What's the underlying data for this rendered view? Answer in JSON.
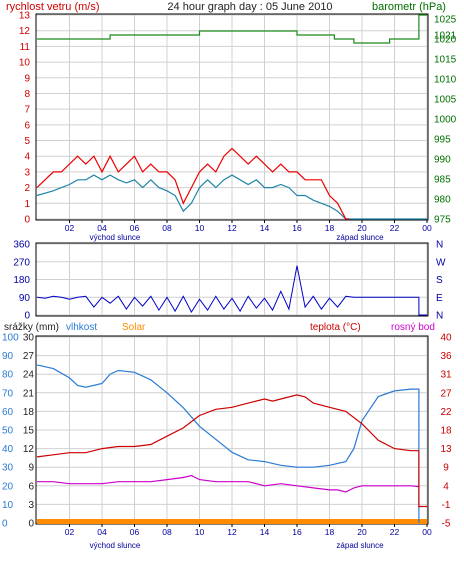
{
  "header": {
    "title": "24 hour graph day : 05 June 2010",
    "left_label": "rychlost vetru (m/s)",
    "right_label": "barometr (hPa)"
  },
  "colors": {
    "wind_axis": "#d00000",
    "pressure_axis": "#007000",
    "gust": "#ee0000",
    "wind_avg": "#1f84a8",
    "pressure": "#1a8a1a",
    "direction": "#0000cc",
    "direction_axis": "#0000a0",
    "humidity": "#2a7ad4",
    "temperature": "#cc0000",
    "dewpoint": "#cc00cc",
    "solar": "#ff8c00",
    "rain_axis": "#2a7ad4",
    "grid": "#d0d0d0"
  },
  "chart_data": [
    {
      "id": "wind",
      "type": "line",
      "y_left": {
        "label": "rychlost vetru (m/s)",
        "range": [
          0,
          13
        ],
        "ticks": [
          "0",
          "1",
          "2",
          "3",
          "4",
          "5",
          "6",
          "7",
          "8",
          "9",
          "10",
          "11",
          "12",
          "13"
        ]
      },
      "y_right": {
        "label": "barometr (hPa)",
        "range": [
          975,
          1026
        ],
        "ticks": [
          "975",
          "980",
          "985",
          "990",
          "995",
          "1000",
          "1005",
          "1010",
          "1015",
          "1020",
          "1025"
        ],
        "extra_tick": "1021"
      },
      "x_ticks": [
        "02",
        "04",
        "06",
        "08",
        "10",
        "12",
        "14",
        "16",
        "18",
        "20",
        "22",
        "00"
      ],
      "x_range": [
        0,
        24
      ],
      "annotations": [
        "východ slunce",
        "západ slunce"
      ],
      "series": [
        {
          "name": "rychlost vetru (m/s)",
          "role": "gust",
          "x": [
            0,
            1,
            1.5,
            2,
            2.5,
            3,
            3.5,
            4,
            4.5,
            5,
            5.5,
            6,
            6.5,
            7,
            7.5,
            8,
            8.5,
            9,
            9.5,
            10,
            10.5,
            11,
            11.5,
            12,
            12.5,
            13,
            13.5,
            14,
            14.5,
            15,
            15.5,
            16,
            16.5,
            17,
            17.5,
            18,
            18.5,
            19,
            19.2
          ],
          "y": [
            2,
            3,
            3,
            3.5,
            4,
            3.5,
            4,
            3,
            4,
            3,
            3.5,
            4,
            3,
            3.5,
            3,
            3,
            2.5,
            1,
            2,
            3,
            3.5,
            3,
            4,
            4.5,
            4,
            3.5,
            4,
            3.5,
            3,
            3.5,
            3,
            3,
            2.5,
            2.5,
            2.5,
            1.5,
            1,
            0,
            0
          ]
        },
        {
          "name": "wind avg",
          "role": "average",
          "x": [
            0,
            1,
            1.5,
            2,
            2.5,
            3,
            3.5,
            4,
            4.5,
            5,
            5.5,
            6,
            6.5,
            7,
            7.5,
            8,
            8.5,
            9,
            9.5,
            10,
            10.5,
            11,
            11.5,
            12,
            12.5,
            13,
            13.5,
            14,
            14.5,
            15,
            15.5,
            16,
            16.5,
            17,
            17.5,
            18,
            18.5,
            19,
            19.2,
            24
          ],
          "y": [
            1.5,
            1.8,
            2,
            2.2,
            2.5,
            2.5,
            2.8,
            2.5,
            2.8,
            2.5,
            2.3,
            2.5,
            2,
            2.5,
            2,
            1.8,
            1.5,
            0.5,
            1,
            2,
            2.5,
            2,
            2.5,
            2.8,
            2.5,
            2.2,
            2.5,
            2,
            2,
            2.2,
            2,
            1.5,
            1.5,
            1.2,
            1,
            0.8,
            0.5,
            0,
            0,
            0
          ]
        },
        {
          "name": "barometr (hPa)",
          "role": "pressure",
          "x": [
            0,
            4.5,
            4.5,
            10,
            10,
            16,
            16,
            18.3,
            18.3,
            19.5,
            19.5,
            21.7,
            21.7,
            23.5,
            23.5,
            24
          ],
          "y": [
            1020,
            1020,
            1021,
            1021,
            1022,
            1022,
            1021,
            1021,
            1020,
            1020,
            1019,
            1019,
            1020,
            1020,
            1026,
            1026
          ]
        }
      ]
    },
    {
      "id": "direction",
      "type": "line",
      "y_left": {
        "range": [
          0,
          360
        ],
        "ticks": [
          "0",
          "90",
          "180",
          "270",
          "360"
        ]
      },
      "y_right": {
        "labels": [
          "N",
          "W",
          "S",
          "E",
          "N"
        ]
      },
      "x_range": [
        0,
        24
      ],
      "series": [
        {
          "name": "wind direction",
          "x": [
            0,
            0.5,
            1,
            1.5,
            2,
            2.5,
            3,
            3.5,
            4,
            4.5,
            5,
            5.5,
            6,
            6.5,
            7,
            7.5,
            8,
            8.5,
            9,
            9.5,
            10,
            10.5,
            11,
            11.5,
            12,
            12.5,
            13,
            13.5,
            14,
            14.5,
            15,
            15.5,
            16,
            16.5,
            17,
            17.5,
            18,
            18.5,
            19,
            19.5,
            23.5,
            23.5,
            24
          ],
          "y": [
            90,
            85,
            95,
            90,
            80,
            90,
            95,
            40,
            90,
            60,
            95,
            30,
            90,
            45,
            95,
            25,
            90,
            20,
            95,
            15,
            80,
            25,
            95,
            30,
            85,
            20,
            95,
            35,
            85,
            25,
            120,
            30,
            250,
            40,
            95,
            30,
            85,
            40,
            95,
            90,
            90,
            0,
            0
          ]
        }
      ]
    },
    {
      "id": "temperature",
      "type": "line",
      "y_left_rain": {
        "label": "srážky (mm)",
        "range": [
          0,
          30
        ],
        "ticks": [
          "0",
          "3",
          "6",
          "9",
          "12",
          "15",
          "18",
          "21",
          "24",
          "27",
          "30"
        ]
      },
      "y_left_humidity": {
        "label": "vlhkost",
        "range": [
          0,
          100
        ],
        "ticks": [
          "0",
          "10",
          "20",
          "30",
          "40",
          "50",
          "60",
          "70",
          "80",
          "90",
          "100"
        ]
      },
      "y_right": {
        "label": "teplota (°C)",
        "range": [
          -5,
          40
        ],
        "ticks": [
          "-5",
          "-1",
          "4",
          "9",
          "13",
          "18",
          "22",
          "27",
          "31",
          "36",
          "40"
        ]
      },
      "x_ticks": [
        "02",
        "04",
        "06",
        "08",
        "10",
        "12",
        "14",
        "16",
        "18",
        "20",
        "22",
        "00"
      ],
      "x_range": [
        0,
        24
      ],
      "legend": [
        "srážky (mm)",
        "vlhkost",
        "Solar",
        "teplota (°C)",
        "rosný bod"
      ],
      "annotations": [
        "východ slunce",
        "západ slunce"
      ],
      "series": [
        {
          "name": "vlhkost",
          "axis": "humidity",
          "x": [
            0,
            1,
            2,
            2.5,
            3,
            4,
            4.5,
            5,
            6,
            7,
            8,
            9,
            10,
            11,
            12,
            13,
            14,
            15,
            16,
            17,
            18,
            19,
            19.5,
            20,
            21,
            22,
            23,
            23.5,
            23.5
          ],
          "y": [
            85,
            83,
            78,
            74,
            73,
            75,
            80,
            82,
            81,
            77,
            70,
            62,
            52,
            45,
            38,
            34,
            33,
            31,
            30,
            30,
            31,
            33,
            40,
            55,
            68,
            71,
            72,
            72,
            0
          ]
        },
        {
          "name": "teplota (°C)",
          "axis": "temperature",
          "x": [
            0,
            1,
            2,
            3,
            4,
            5,
            6,
            7,
            8,
            9,
            10,
            11,
            12,
            13,
            14,
            14.5,
            15,
            16,
            16.5,
            17,
            18,
            19,
            20,
            21,
            22,
            23,
            23.5,
            23.5,
            25
          ],
          "y": [
            11,
            11.5,
            12,
            12,
            13,
            13.5,
            13.5,
            14,
            16,
            18,
            21,
            22.5,
            23,
            24,
            25,
            24.5,
            25,
            26,
            25.5,
            24,
            23,
            22,
            19,
            15,
            13,
            12.5,
            12.5,
            -1,
            -1
          ]
        },
        {
          "name": "rosný bod",
          "axis": "temperature",
          "x": [
            0,
            1,
            2,
            3,
            4,
            5,
            6,
            7,
            8,
            9,
            9.5,
            10,
            11,
            12,
            13,
            14,
            15,
            16,
            17,
            18,
            18.5,
            19,
            19.5,
            20,
            21,
            22,
            23,
            23.5
          ],
          "y": [
            5,
            5,
            4.5,
            4.5,
            4.5,
            5,
            5,
            5,
            5.5,
            6,
            6.5,
            5.5,
            5,
            5,
            5,
            4,
            4.5,
            4,
            3.5,
            3,
            3,
            2.5,
            3.5,
            4,
            4,
            4,
            4,
            3.8
          ]
        },
        {
          "name": "Solar",
          "axis": "rain",
          "x": [
            0,
            24
          ],
          "y": [
            0,
            0
          ]
        }
      ]
    }
  ]
}
